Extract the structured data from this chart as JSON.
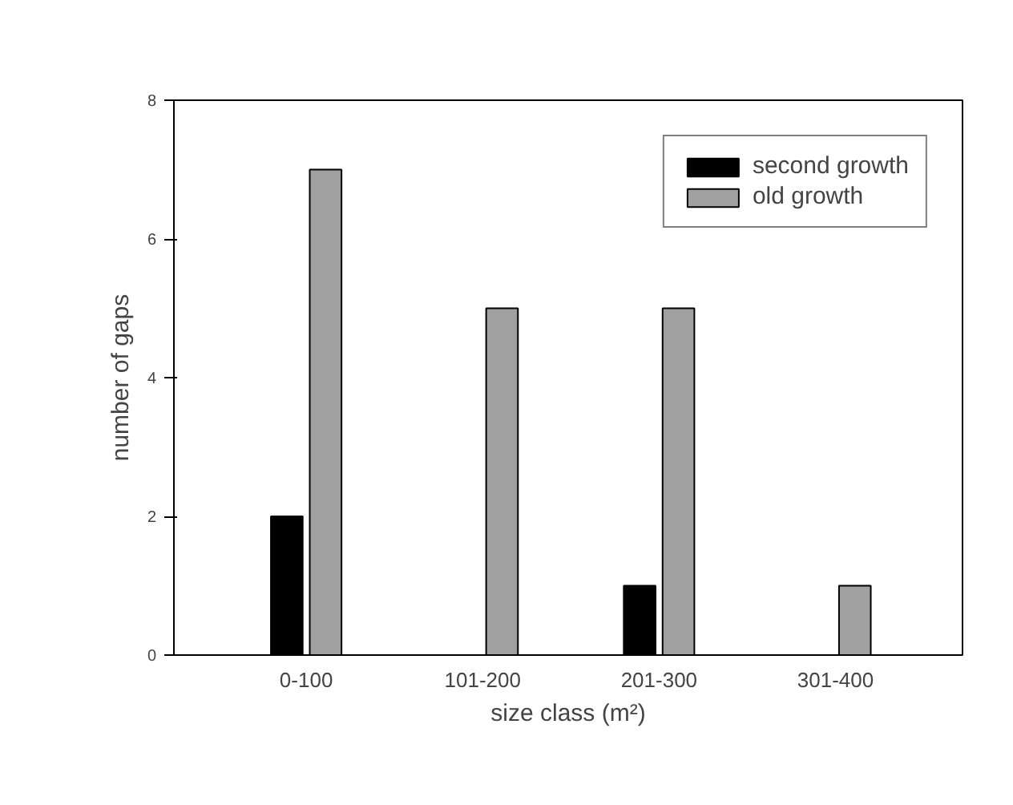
{
  "chart_data": {
    "type": "bar",
    "xlabel": "size class (m²)",
    "ylabel": "number of gaps",
    "categories": [
      "0-100",
      "101-200",
      "201-300",
      "301-400"
    ],
    "series": [
      {
        "name": "second growth",
        "color": "#000000",
        "values": [
          2,
          0,
          1,
          0
        ]
      },
      {
        "name": "old growth",
        "color": "#a0a0a0",
        "values": [
          7,
          5,
          5,
          1
        ]
      }
    ],
    "ylim": [
      0,
      8
    ],
    "yticks": [
      0,
      2,
      4,
      6,
      8
    ],
    "grid": false,
    "legend": "top right"
  }
}
